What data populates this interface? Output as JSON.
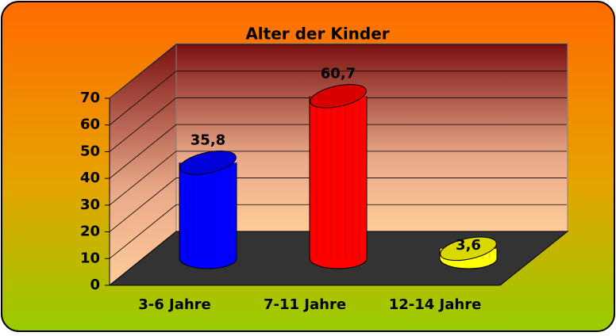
{
  "chart_data": {
    "type": "bar3d",
    "title": "Alter der Kinder",
    "categories": [
      "3-6 Jahre",
      "7-11 Jahre",
      "12-14 Jahre"
    ],
    "values": [
      35.8,
      60.7,
      3.6
    ],
    "value_labels": [
      "35,8",
      "60,7",
      "3,6"
    ],
    "colors": [
      "#0000ff",
      "#ff0000",
      "#ffff00"
    ],
    "ylim": [
      0,
      70
    ],
    "yticks": [
      0,
      10,
      20,
      30,
      40,
      50,
      60,
      70
    ],
    "grid": true
  }
}
